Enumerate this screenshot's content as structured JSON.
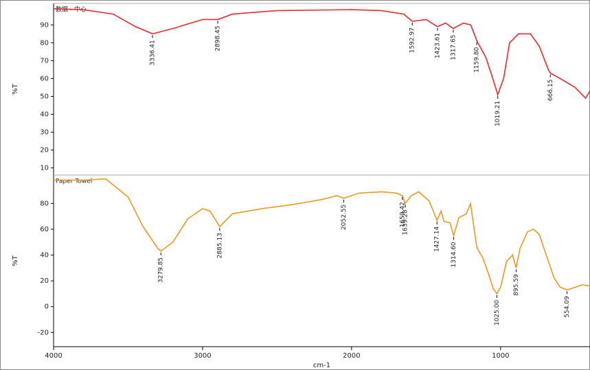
{
  "chart_data": [
    {
      "type": "line",
      "title": "数据 - 中心",
      "ylabel": "%T",
      "xlim": [
        4000,
        400
      ],
      "ylim": [
        6,
        102
      ],
      "yticks": [
        10,
        20,
        30,
        40,
        50,
        60,
        70,
        80,
        90
      ],
      "series": [
        {
          "name": "数据 - 中心",
          "color": "#f0282d",
          "x": [
            4000,
            3800,
            3600,
            3450,
            3336,
            3200,
            3000,
            2898,
            2800,
            2500,
            2000,
            1800,
            1650,
            1593,
            1500,
            1424,
            1370,
            1318,
            1250,
            1200,
            1159,
            1100,
            1060,
            1019,
            980,
            940,
            880,
            800,
            740,
            680,
            666,
            600,
            500,
            430,
            400
          ],
          "values": [
            99,
            98.5,
            96,
            89,
            85,
            88,
            93,
            93,
            96,
            98,
            98.5,
            98,
            96,
            92,
            93,
            89,
            91,
            88,
            91,
            90,
            81,
            72,
            62,
            51,
            60,
            80,
            85,
            85,
            78,
            65,
            63,
            60,
            55,
            49,
            53
          ]
        }
      ],
      "peaks_x": [
        3336.41,
        2898.45,
        1592.97,
        1423.61,
        1317.65,
        1159.8,
        1019.21,
        666.15
      ],
      "peaks_y": [
        85,
        93,
        92,
        89,
        88,
        81,
        51,
        63
      ],
      "peak_labels": [
        "3336.41",
        "2898.45",
        "1592.97",
        "1423.61",
        "1317.65",
        "1159.80",
        "1019.21",
        "666.15"
      ]
    },
    {
      "type": "line",
      "title": "Paper Towel",
      "ylabel": "%T",
      "xlabel": "cm-1",
      "xlim": [
        4000,
        400
      ],
      "ylim": [
        -31,
        102
      ],
      "yticks": [
        -20,
        0,
        20,
        40,
        60,
        80
      ],
      "xticks": [
        4000,
        3000,
        2000,
        1000
      ],
      "series": [
        {
          "name": "Paper Towel",
          "color": "#eb9a1e",
          "x": [
            4000,
            3800,
            3650,
            3500,
            3400,
            3300,
            3280,
            3200,
            3100,
            3000,
            2950,
            2885,
            2800,
            2600,
            2400,
            2200,
            2100,
            2052,
            1950,
            1800,
            1700,
            1659,
            1640,
            1600,
            1550,
            1480,
            1427,
            1400,
            1380,
            1340,
            1315,
            1280,
            1230,
            1202,
            1180,
            1160,
            1120,
            1080,
            1050,
            1025,
            1000,
            960,
            920,
            896,
            870,
            820,
            780,
            740,
            700,
            640,
            600,
            554,
            500,
            450,
            400
          ],
          "values": [
            98,
            98,
            99,
            85,
            62,
            45,
            43,
            50,
            68,
            76,
            74,
            62,
            72,
            76,
            79,
            83,
            86,
            84,
            88,
            89,
            88,
            86,
            80,
            86,
            89,
            82,
            67,
            74,
            66,
            65,
            55,
            69,
            72,
            80,
            62,
            46,
            38,
            25,
            14,
            10,
            15,
            35,
            40,
            30,
            45,
            58,
            60,
            56,
            42,
            22,
            15,
            13,
            15,
            17,
            16
          ]
        }
      ],
      "peaks_x": [
        3279.85,
        2885.13,
        2052.55,
        1659.42,
        1639.28,
        1427.14,
        1314.6,
        1025.0,
        895.59,
        554.09
      ],
      "peaks_y": [
        43,
        62,
        84,
        86,
        80,
        67,
        55,
        10,
        30,
        13
      ],
      "peak_labels": [
        "3279.85",
        "2885.13",
        "2052.55",
        "1659.42",
        "1639.28",
        "1427.14",
        "1314.60",
        "1025.00",
        "895.59",
        "554.09"
      ]
    }
  ]
}
